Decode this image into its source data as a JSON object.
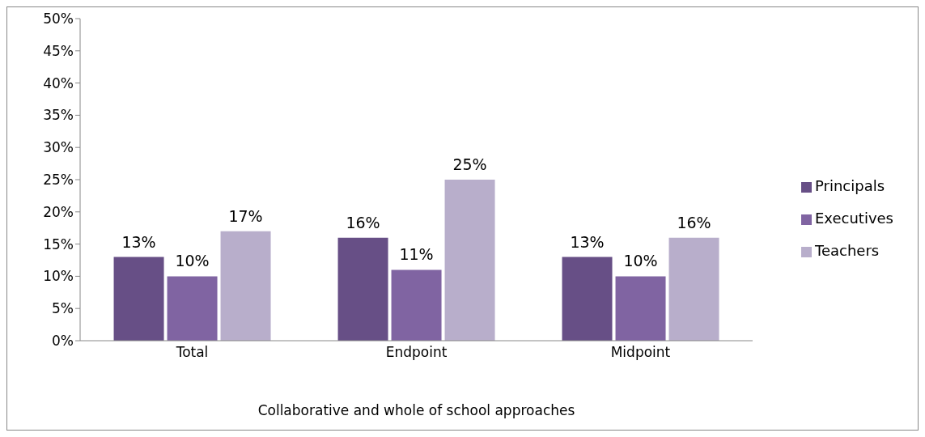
{
  "chart_data": {
    "type": "bar",
    "xlabel": "Collaborative and whole of school approaches",
    "categories": [
      "Total",
      "Endpoint",
      "Midpoint"
    ],
    "series": [
      {
        "name": "Principals",
        "color": "#674f86",
        "values": [
          13,
          16,
          13
        ],
        "value_labels": [
          "13%",
          "16%",
          "13%"
        ]
      },
      {
        "name": "Executives",
        "color": "#8064a2",
        "values": [
          10,
          11,
          10
        ],
        "value_labels": [
          "10%",
          "11%",
          "10%"
        ]
      },
      {
        "name": "Teachers",
        "color": "#b8aecb",
        "values": [
          17,
          25,
          16
        ],
        "value_labels": [
          "17%",
          "25%",
          "16%"
        ]
      }
    ],
    "ylim": [
      0,
      50
    ],
    "yticks": [
      {
        "value": 0,
        "label": "0%"
      },
      {
        "value": 5,
        "label": "5%"
      },
      {
        "value": 10,
        "label": "10%"
      },
      {
        "value": 15,
        "label": "15%"
      },
      {
        "value": 20,
        "label": "20%"
      },
      {
        "value": 25,
        "label": "25%"
      },
      {
        "value": 30,
        "label": "30%"
      },
      {
        "value": 35,
        "label": "35%"
      },
      {
        "value": 40,
        "label": "40%"
      },
      {
        "value": 45,
        "label": "45%"
      },
      {
        "value": 50,
        "label": "50%"
      }
    ],
    "grid": false,
    "legend": "right"
  }
}
